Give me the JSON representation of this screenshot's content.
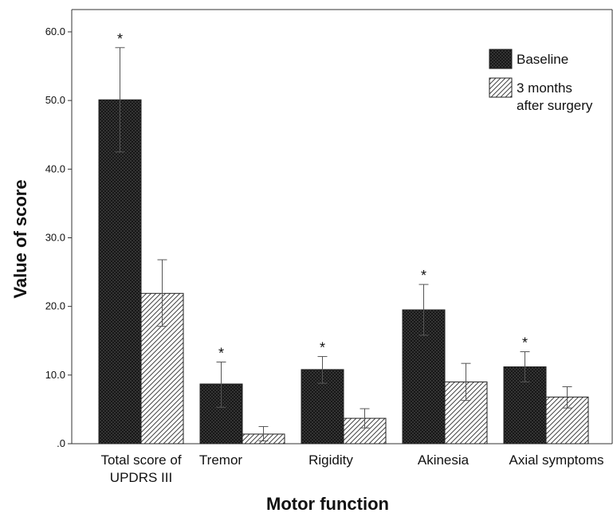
{
  "chart_data": {
    "type": "bar",
    "title": "",
    "xlabel": "Motor function",
    "ylabel": "Value of score",
    "ylim": [
      0,
      64
    ],
    "yticks": [
      {
        "value": 0,
        "label": ".0"
      },
      {
        "value": 10,
        "label": "10.0"
      },
      {
        "value": 20,
        "label": "20.0"
      },
      {
        "value": 30,
        "label": "30.0"
      },
      {
        "value": 40,
        "label": "40.0"
      },
      {
        "value": 50,
        "label": "50.0"
      },
      {
        "value": 60,
        "label": "60.0"
      }
    ],
    "categories": [
      [
        "Total score of",
        "UPDRS III"
      ],
      [
        "Tremor"
      ],
      [
        "Rigidity"
      ],
      [
        "Akinesia"
      ],
      [
        "Axial symptoms"
      ]
    ],
    "series": [
      {
        "name": "Baseline",
        "values": [
          50.1,
          8.7,
          10.8,
          19.5,
          11.2
        ],
        "err_low": [
          42.5,
          5.3,
          8.8,
          15.8,
          9.0
        ],
        "err_high": [
          57.7,
          11.9,
          12.7,
          23.2,
          13.4
        ],
        "pattern": "crosshatch-dark"
      },
      {
        "name": [
          "3 months",
          "after surgery"
        ],
        "values": [
          21.9,
          1.4,
          3.7,
          9.0,
          6.8
        ],
        "err_low": [
          17.1,
          0.4,
          2.3,
          6.3,
          5.2
        ],
        "err_high": [
          26.8,
          2.5,
          5.1,
          11.7,
          8.3
        ],
        "pattern": "diagonal-light"
      }
    ],
    "significance": [
      "*",
      "*",
      "*",
      "*",
      "*"
    ],
    "legend_position": "top-right",
    "grid": false
  }
}
